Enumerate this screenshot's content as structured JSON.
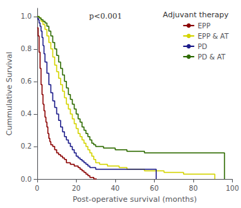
{
  "chart_data": {
    "type": "step",
    "xlabel": "Post-operative survival (months)",
    "ylabel": "Cummulative Survival",
    "annotations": [
      "p<0.001"
    ],
    "legend_title": "Adjuvant therapy",
    "legend": "upper right",
    "grid": false,
    "xlim": [
      0,
      100
    ],
    "ylim": [
      0,
      1.05
    ],
    "xticks": [
      0,
      20,
      40,
      60,
      80,
      100
    ],
    "yticks": [
      {
        "value": 0.0,
        "label": "0.0"
      },
      0.2,
      0.4,
      0.6,
      0.8,
      {
        "value": 1.0,
        "label": "1.0"
      }
    ],
    "series": [
      {
        "name": "EPP",
        "color": "#8B0000",
        "x": [
          0,
          0.5,
          1,
          1.5,
          2,
          2.5,
          3,
          3.5,
          4,
          4.5,
          5,
          5.5,
          6,
          6.5,
          7,
          8,
          9,
          10,
          11,
          12,
          13,
          14,
          15,
          16,
          17,
          18,
          19,
          20,
          21,
          22,
          23,
          24,
          25,
          26,
          27,
          28,
          29,
          30,
          30.5
        ],
        "values": [
          0.93,
          0.88,
          0.78,
          0.68,
          0.58,
          0.52,
          0.46,
          0.42,
          0.38,
          0.35,
          0.32,
          0.28,
          0.25,
          0.23,
          0.21,
          0.2,
          0.18,
          0.16,
          0.15,
          0.14,
          0.13,
          0.12,
          0.1,
          0.1,
          0.09,
          0.09,
          0.08,
          0.08,
          0.07,
          0.06,
          0.05,
          0.04,
          0.03,
          0.02,
          0.01,
          0.01,
          0.0,
          0.0,
          0.0
        ]
      },
      {
        "name": "EPP & AT",
        "color": "#d4d400",
        "x": [
          0,
          1,
          2,
          3,
          4,
          5,
          6,
          7,
          8,
          9,
          10,
          11,
          12,
          13,
          14,
          15,
          16,
          17,
          18,
          19,
          20,
          21,
          22,
          23,
          24,
          25,
          26,
          27,
          28,
          29,
          30,
          32,
          34,
          36,
          38,
          40,
          42,
          44,
          46,
          48,
          50,
          55,
          60,
          65,
          70,
          75,
          80,
          85,
          90,
          91
        ],
        "values": [
          1.0,
          0.99,
          0.97,
          0.95,
          0.92,
          0.88,
          0.84,
          0.8,
          0.75,
          0.7,
          0.66,
          0.62,
          0.58,
          0.54,
          0.5,
          0.46,
          0.43,
          0.4,
          0.37,
          0.34,
          0.31,
          0.28,
          0.26,
          0.24,
          0.22,
          0.2,
          0.18,
          0.16,
          0.14,
          0.12,
          0.1,
          0.09,
          0.09,
          0.08,
          0.08,
          0.08,
          0.07,
          0.07,
          0.06,
          0.06,
          0.06,
          0.05,
          0.05,
          0.04,
          0.04,
          0.03,
          0.03,
          0.03,
          0.03,
          0.0
        ]
      },
      {
        "name": "PD",
        "color": "#1c1c8a",
        "x": [
          0,
          0.5,
          1,
          1.5,
          2,
          2.5,
          3,
          3.5,
          4,
          5,
          6,
          7,
          8,
          9,
          10,
          11,
          12,
          13,
          14,
          15,
          16,
          17,
          18,
          19,
          20,
          21,
          22,
          23,
          24,
          25,
          26,
          27,
          28,
          29,
          30,
          35,
          40,
          50,
          55,
          60,
          61
        ],
        "values": [
          0.99,
          0.98,
          0.96,
          0.94,
          0.91,
          0.87,
          0.82,
          0.77,
          0.72,
          0.65,
          0.58,
          0.53,
          0.48,
          0.44,
          0.4,
          0.36,
          0.32,
          0.29,
          0.26,
          0.24,
          0.22,
          0.2,
          0.18,
          0.16,
          0.14,
          0.13,
          0.12,
          0.11,
          0.1,
          0.09,
          0.08,
          0.07,
          0.07,
          0.07,
          0.06,
          0.06,
          0.06,
          0.06,
          0.06,
          0.06,
          0.0
        ]
      },
      {
        "name": "PD & AT",
        "color": "#2e6b00",
        "x": [
          0,
          1,
          2,
          3,
          4,
          5,
          6,
          7,
          8,
          9,
          10,
          11,
          12,
          13,
          14,
          15,
          16,
          17,
          18,
          19,
          20,
          21,
          22,
          23,
          24,
          25,
          26,
          27,
          28,
          29,
          30,
          32,
          34,
          36,
          38,
          40,
          42,
          44,
          46,
          48,
          50,
          52,
          55,
          60,
          65,
          70,
          75,
          80,
          85,
          90,
          95,
          96
        ],
        "values": [
          1.0,
          0.99,
          0.98,
          0.97,
          0.96,
          0.94,
          0.91,
          0.88,
          0.84,
          0.8,
          0.76,
          0.72,
          0.68,
          0.64,
          0.6,
          0.56,
          0.52,
          0.49,
          0.46,
          0.43,
          0.4,
          0.37,
          0.35,
          0.32,
          0.3,
          0.28,
          0.26,
          0.24,
          0.22,
          0.21,
          0.2,
          0.2,
          0.19,
          0.19,
          0.19,
          0.18,
          0.18,
          0.18,
          0.17,
          0.17,
          0.17,
          0.17,
          0.16,
          0.16,
          0.16,
          0.16,
          0.16,
          0.16,
          0.16,
          0.16,
          0.16,
          0.0
        ]
      }
    ]
  }
}
